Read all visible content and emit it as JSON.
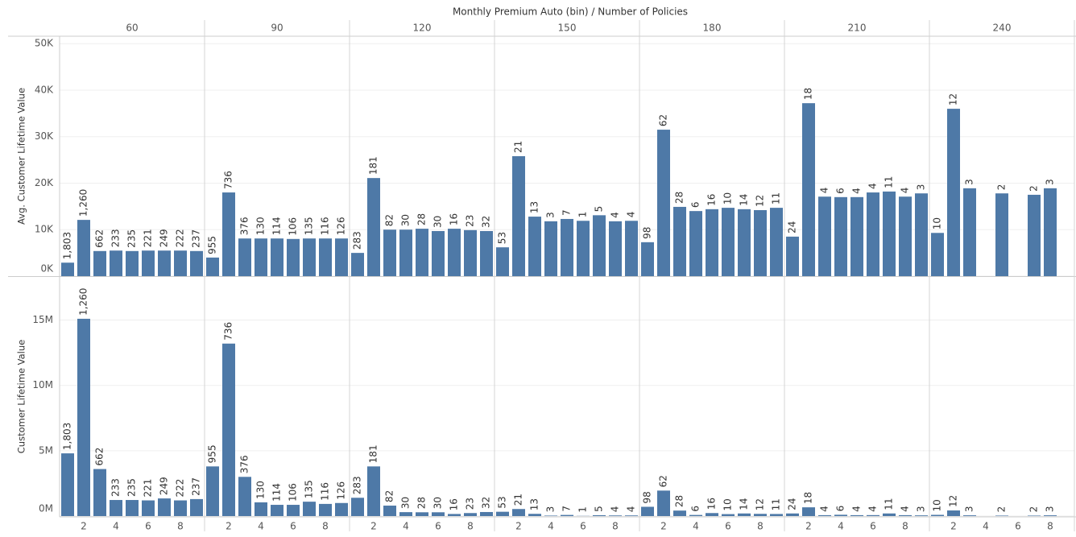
{
  "chart_data": {
    "type": "bar",
    "title": "Monthly Premium Auto (bin)  /  Number of Policies",
    "color": "#4e79a7",
    "groups": [
      60,
      90,
      120,
      150,
      180,
      210,
      240
    ],
    "categories": [
      null,
      2,
      null,
      4,
      null,
      6,
      null,
      8,
      null
    ],
    "counts": [
      [
        {
          "value": 1803,
          "label": "1,803"
        },
        {
          "value": 1260,
          "label": "1,260"
        },
        662,
        233,
        235,
        221,
        249,
        222,
        237
      ],
      [
        955,
        736,
        376,
        130,
        114,
        106,
        135,
        116,
        126
      ],
      [
        283,
        181,
        82,
        30,
        28,
        30,
        16,
        23,
        32
      ],
      [
        53,
        21,
        13,
        3,
        7,
        1,
        5,
        4,
        4
      ],
      [
        98,
        62,
        28,
        6,
        16,
        10,
        14,
        12,
        11
      ],
      [
        24,
        18,
        4,
        6,
        4,
        4,
        11,
        4,
        3
      ],
      [
        10,
        12,
        3,
        null,
        2,
        null,
        2,
        3,
        null
      ]
    ],
    "panes": [
      {
        "y_label": "Avg. Customer Lifetime Value",
        "ylim": [
          0,
          51600
        ],
        "grid": true,
        "yticks": [
          {
            "value": 0,
            "label": "0K"
          },
          {
            "value": 10000,
            "label": "10K"
          },
          {
            "value": 20000,
            "label": "20K"
          },
          {
            "value": 30000,
            "label": "30K"
          },
          {
            "value": 40000,
            "label": "40K"
          },
          {
            "value": 50000,
            "label": "50K"
          }
        ],
        "values": [
          [
            2900,
            12100,
            5400,
            5500,
            5400,
            5500,
            5500,
            5500,
            5400
          ],
          [
            4000,
            18000,
            8100,
            8100,
            8100,
            8000,
            8100,
            8100,
            8100
          ],
          [
            5000,
            21100,
            10000,
            10000,
            10200,
            9700,
            10200,
            9900,
            9700
          ],
          [
            6200,
            25800,
            12800,
            11800,
            12300,
            11900,
            13100,
            11800,
            11900
          ],
          [
            7300,
            31500,
            14900,
            14000,
            14400,
            14700,
            14400,
            14200,
            14700
          ],
          [
            8500,
            37200,
            17100,
            17000,
            17000,
            18000,
            18200,
            17100,
            17800
          ],
          [
            9300,
            36000,
            18900,
            null,
            17800,
            null,
            17500,
            18900,
            null
          ]
        ]
      },
      {
        "y_label": "Customer Lifetime Value",
        "ylim": [
          0,
          18300000
        ],
        "grid": true,
        "yticks": [
          {
            "value": 0,
            "label": "0M"
          },
          {
            "value": 5000000,
            "label": "5M"
          },
          {
            "value": 10000000,
            "label": "10M"
          },
          {
            "value": 15000000,
            "label": "15M"
          }
        ],
        "values": [
          [
            4800000,
            15100000,
            3600000,
            1230000,
            1230000,
            1200000,
            1350000,
            1200000,
            1300000
          ],
          [
            3800000,
            13200000,
            3000000,
            1050000,
            860000,
            860000,
            1100000,
            930000,
            1000000
          ],
          [
            1400000,
            3800000,
            800000,
            300000,
            290000,
            290000,
            160000,
            230000,
            310000
          ],
          [
            330000,
            540000,
            170000,
            35000,
            86000,
            12000,
            66000,
            47000,
            48000
          ],
          [
            710000,
            1950000,
            420000,
            84000,
            230000,
            150000,
            200000,
            170000,
            160000
          ],
          [
            200000,
            670000,
            68000,
            100000,
            68000,
            72000,
            200000,
            68000,
            53000
          ],
          [
            93000,
            430000,
            57000,
            null,
            36000,
            null,
            35000,
            57000,
            null
          ]
        ]
      }
    ]
  }
}
